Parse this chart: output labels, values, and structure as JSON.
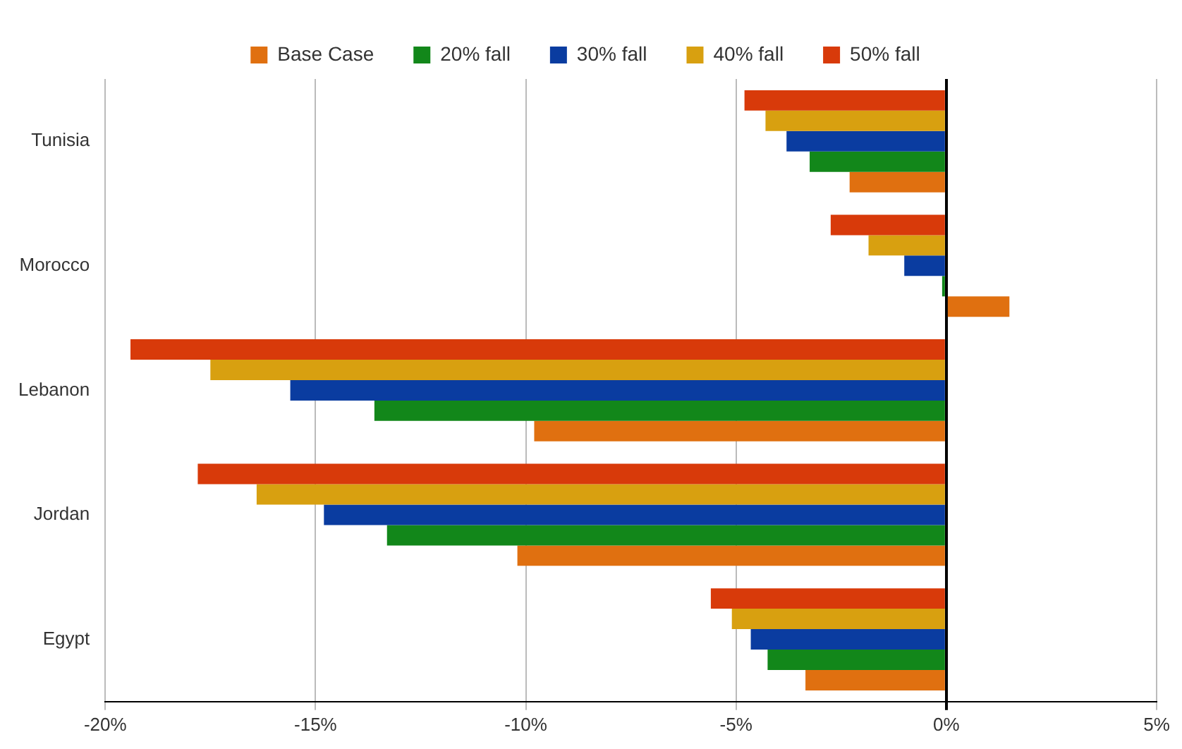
{
  "chart_data": {
    "type": "bar",
    "orientation": "horizontal",
    "categories": [
      "Tunisia",
      "Morocco",
      "Lebanon",
      "Jordan",
      "Egypt"
    ],
    "series": [
      {
        "name": "Base Case",
        "color": "#e07010",
        "values": [
          -2.3,
          1.5,
          -9.8,
          -10.2,
          -3.35
        ]
      },
      {
        "name": "20% fall",
        "color": "#12871a",
        "values": [
          -3.25,
          -0.1,
          -13.6,
          -13.3,
          -4.25
        ]
      },
      {
        "name": "30% fall",
        "color": "#0a3ca0",
        "values": [
          -3.8,
          -1.0,
          -15.6,
          -14.8,
          -4.65
        ]
      },
      {
        "name": "40% fall",
        "color": "#d8a010",
        "values": [
          -4.3,
          -1.85,
          -17.5,
          -16.4,
          -5.1
        ]
      },
      {
        "name": "50% fall",
        "color": "#d83a0a",
        "values": [
          -4.8,
          -2.75,
          -19.4,
          -17.8,
          -5.6
        ]
      }
    ],
    "xlim": [
      -20,
      5
    ],
    "xticks": [
      {
        "value": -20,
        "label": "-20%"
      },
      {
        "value": -15,
        "label": "-15%"
      },
      {
        "value": -10,
        "label": "-10%"
      },
      {
        "value": -5,
        "label": "-5%"
      },
      {
        "value": 0,
        "label": "0%"
      },
      {
        "value": 5,
        "label": "5%"
      }
    ],
    "grid": "x",
    "legend": "top"
  }
}
